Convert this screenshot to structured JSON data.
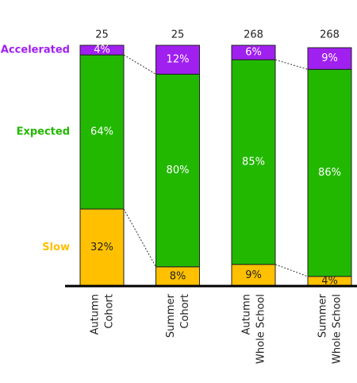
{
  "chart_data": {
    "type": "stacked_bar_100",
    "categories": [
      [
        "Autumn",
        "Cohort"
      ],
      [
        "Summer",
        "Cohort"
      ],
      [
        "Autumn",
        "Whole School"
      ],
      [
        "Summer",
        "Whole School"
      ]
    ],
    "totals": [
      25,
      25,
      268,
      268
    ],
    "ylim": [
      0,
      100
    ],
    "series": [
      {
        "name": "Slow",
        "color": "#ffc000",
        "label_color": "#222222",
        "values": [
          32,
          8,
          9,
          4
        ],
        "value_labels": [
          "32%",
          "8%",
          "9%",
          "4%"
        ]
      },
      {
        "name": "Expected",
        "color": "#22b800",
        "label_color": "#ffffff",
        "values": [
          64,
          80,
          85,
          86
        ],
        "value_labels": [
          "64%",
          "80%",
          "85%",
          "86%"
        ]
      },
      {
        "name": "Accelerated",
        "color": "#a020f0",
        "label_color": "#ffffff",
        "values": [
          4,
          12,
          6,
          9
        ],
        "value_labels": [
          "4%",
          "12%",
          "6%",
          "9%"
        ]
      }
    ]
  }
}
